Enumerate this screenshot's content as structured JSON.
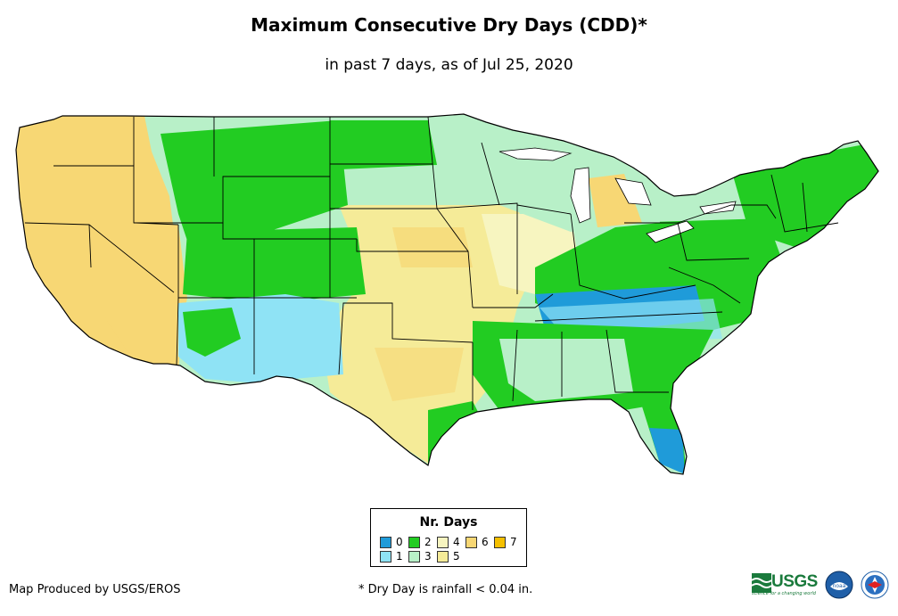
{
  "header": {
    "title": "Maximum Consecutive Dry Days (CDD)*",
    "subtitle": "in past 7 days, as of Jul 25, 2020"
  },
  "legend": {
    "title": "Nr. Days",
    "items": [
      {
        "label": "0",
        "color": "#1f9bd9"
      },
      {
        "label": "1",
        "color": "#8fe3f5"
      },
      {
        "label": "2",
        "color": "#22cc22"
      },
      {
        "label": "3",
        "color": "#b8f0c8"
      },
      {
        "label": "4",
        "color": "#f7f5c0"
      },
      {
        "label": "5",
        "color": "#f5eb98"
      },
      {
        "label": "6",
        "color": "#f7d774"
      },
      {
        "label": "7",
        "color": "#f5c000"
      }
    ]
  },
  "footer": {
    "credit": "Map Produced by USGS/EROS",
    "footnote": "* Dry Day is rainfall < 0.04 in."
  },
  "logos": {
    "usgs_wordmark": "USGS",
    "usgs_tagline": "science for a changing world",
    "noaa_seal": "noaa",
    "nws_seal": "NATIONAL WEATHER SERVICE"
  }
}
